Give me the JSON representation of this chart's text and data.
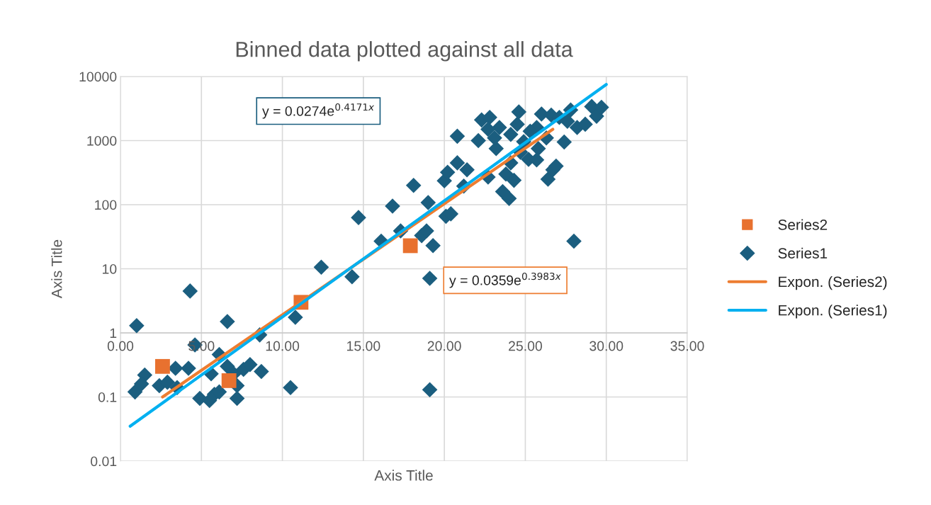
{
  "chart_data": {
    "type": "scatter",
    "title": "Binned data plotted against all data",
    "xlabel": "Axis Title",
    "ylabel": "Axis Title",
    "log": "y",
    "grid": true,
    "legend": "right",
    "xlim": [
      0,
      35
    ],
    "xticks": [
      {
        "value": 0,
        "label": "0.00"
      },
      {
        "value": 5,
        "label": "5.00"
      },
      {
        "value": 10,
        "label": "10.00"
      },
      {
        "value": 15,
        "label": "15.00"
      },
      {
        "value": 20,
        "label": "20.00"
      },
      {
        "value": 25,
        "label": "25.00"
      },
      {
        "value": 30,
        "label": "30.00"
      },
      {
        "value": 35,
        "label": "35.00"
      }
    ],
    "ylim": [
      0.01,
      10000
    ],
    "yticks": [
      0.01,
      0.1,
      1,
      10,
      100,
      1000,
      10000
    ],
    "annotations": [
      "y = 0.0274e$^{0.4171x}$",
      "y = 0.0359e$^{0.3983x}$"
    ],
    "series": [
      {
        "name": "Series2",
        "marker": "square",
        "color": "#e8712f",
        "x": [
          2.6,
          6.7,
          11.15,
          17.9
        ],
        "values": [
          0.3,
          0.18,
          3.0,
          22.9
        ]
      },
      {
        "name": "Series1",
        "marker": "diamond",
        "color": "#1b5e7f",
        "x": [
          1.0,
          4.3,
          6.6,
          4.6,
          0.9,
          1.5,
          1.3,
          2.4,
          2.9,
          3.4,
          4.2,
          3.5,
          4.9,
          5.5,
          5.8,
          6.1,
          5.6,
          6.1,
          6.6,
          7.0,
          7.2,
          7.2,
          7.6,
          8.0,
          8.7,
          8.6,
          10.5,
          10.8,
          12.4,
          14.3,
          14.7,
          16.8,
          18.1,
          16.1,
          17.3,
          18.6,
          18.9,
          19.1,
          19.0,
          19.3,
          19.1,
          20.1,
          20.4,
          20.0,
          20.2,
          20.8,
          20.8,
          21.2,
          21.4,
          22.3,
          22.8,
          22.1,
          22.7,
          23.2,
          23.6,
          24.0,
          23.8,
          24.3,
          23.4,
          24.1,
          24.5,
          24.6,
          24.9,
          25.2,
          25.7,
          25.8,
          26.0,
          26.4,
          26.3,
          26.7,
          26.9,
          26.6,
          27.1,
          27.4,
          27.8,
          28.0,
          28.2,
          28.7,
          29.1,
          29.4,
          29.7,
          22.7,
          23.1,
          25.3,
          24.7,
          24.1,
          25.7,
          27.6
        ],
        "values": [
          1.3,
          4.5,
          1.5,
          0.65,
          0.12,
          0.22,
          0.16,
          0.15,
          0.17,
          0.28,
          0.28,
          0.14,
          0.095,
          0.088,
          0.11,
          0.12,
          0.23,
          0.46,
          0.3,
          0.23,
          0.15,
          0.095,
          0.27,
          0.32,
          0.25,
          0.93,
          0.14,
          1.75,
          10.6,
          7.5,
          63,
          95,
          200,
          27,
          39,
          33,
          39,
          7.1,
          108,
          23,
          0.13,
          66,
          72,
          236,
          320,
          1170,
          450,
          195,
          350,
          2100,
          2300,
          1000,
          270,
          750,
          160,
          125,
          300,
          240,
          1600,
          1250,
          1800,
          2800,
          960,
          510,
          1600,
          750,
          2600,
          250,
          1100,
          350,
          400,
          2500,
          2300,
          950,
          3000,
          27,
          1600,
          1800,
          3400,
          2400,
          3300,
          1500,
          1100,
          1400,
          660,
          450,
          500,
          2000
        ]
      },
      {
        "name": "Expon. (Series2)",
        "type": "line",
        "marker": "none",
        "line_style": "solid",
        "color": "#ed7d31",
        "x": [
          2.6,
          26.7
        ],
        "values": [
          0.1,
          1500
        ]
      },
      {
        "name": "Expon. (Series1)",
        "type": "line",
        "marker": "none",
        "line_style": "solid",
        "color": "#00b0f0",
        "x": [
          0.6,
          30.0
        ],
        "values": [
          0.035,
          7500
        ]
      }
    ]
  }
}
